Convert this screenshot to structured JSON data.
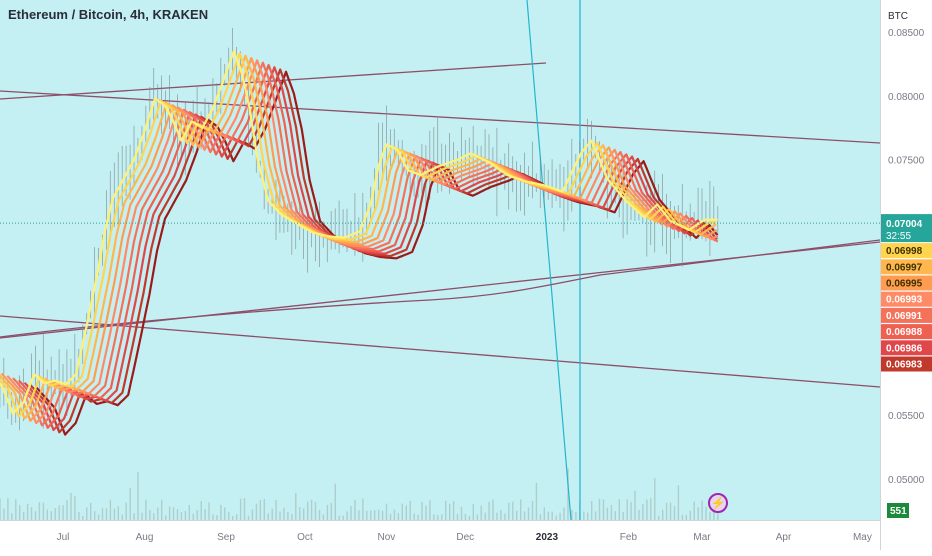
{
  "header": {
    "title": "Ethereum / Bitcoin, 4h, KRAKEN"
  },
  "price_scale": {
    "currency": "BTC",
    "current_price": "0.07004",
    "countdown": "32:55",
    "volume_badge": "551"
  },
  "colors": {
    "background": "#c5f0f3",
    "ribbon": [
      "#fff176",
      "#ffd54f",
      "#ffb74d",
      "#ff9c4f",
      "#ff8a65",
      "#f4715a",
      "#f06050",
      "#e0474a",
      "#c0392b",
      "#9b1b1b"
    ],
    "trendline": "#8d4e6a",
    "vertical_line": "#22b5cf",
    "candle": "#7a8a8a",
    "volume": "#9fb8b0",
    "price_label": "#26a69a"
  },
  "icons": {
    "alert": "bolt-icon"
  },
  "chart_data": {
    "type": "line",
    "title": "Ethereum / Bitcoin, 4h, KRAKEN",
    "x_ticks": [
      "Jul",
      "Aug",
      "Sep",
      "Oct",
      "Nov",
      "Dec",
      "2023",
      "Feb",
      "Mar",
      "Apr",
      "May"
    ],
    "y_ticks": [
      0.05,
      0.055,
      0.07,
      0.075,
      0.08,
      0.085
    ],
    "y_tick_labels": [
      "0.05000",
      "0.05500",
      "0.07000",
      "0.07500",
      "0.08000",
      "0.08500"
    ],
    "ylabel": "BTC",
    "ylim": [
      0.0485,
      0.0865
    ],
    "grid": false,
    "series": [
      {
        "x": [
          "2022-06-01",
          "2022-06-08",
          "2022-06-12",
          "2022-06-16",
          "2022-06-20",
          "2022-06-24",
          "2022-06-28",
          "2022-07-02",
          "2022-07-06",
          "2022-07-10",
          "2022-07-14",
          "2022-07-17",
          "2022-07-20",
          "2022-07-24",
          "2022-07-28",
          "2022-08-01",
          "2022-08-05",
          "2022-08-09",
          "2022-08-12",
          "2022-08-15",
          "2022-08-19",
          "2022-08-23",
          "2022-08-27",
          "2022-08-31",
          "2022-09-04",
          "2022-09-07",
          "2022-09-10",
          "2022-09-13",
          "2022-09-17",
          "2022-09-22",
          "2022-09-28",
          "2022-10-04",
          "2022-10-10",
          "2022-10-16",
          "2022-10-22",
          "2022-10-26",
          "2022-10-29",
          "2022-11-01",
          "2022-11-05",
          "2022-11-09",
          "2022-11-14",
          "2022-11-21",
          "2022-11-28",
          "2022-12-03",
          "2022-12-10",
          "2022-12-17",
          "2022-12-24",
          "2022-12-31",
          "2023-01-07",
          "2023-01-14",
          "2023-01-18",
          "2023-01-24",
          "2023-01-31",
          "2023-02-07",
          "2023-02-12",
          "2023-02-17",
          "2023-02-24",
          "2023-03-02",
          "2023-03-07"
        ],
        "values": [
          0.0588,
          0.0572,
          0.0551,
          0.056,
          0.0582,
          0.0575,
          0.0577,
          0.0574,
          0.0582,
          0.062,
          0.066,
          0.0695,
          0.072,
          0.0735,
          0.075,
          0.0772,
          0.0798,
          0.0792,
          0.078,
          0.0765,
          0.078,
          0.0775,
          0.079,
          0.0812,
          0.0835,
          0.0818,
          0.079,
          0.075,
          0.0718,
          0.0707,
          0.07,
          0.0693,
          0.069,
          0.0689,
          0.0694,
          0.0715,
          0.0745,
          0.0762,
          0.0758,
          0.0742,
          0.0738,
          0.0745,
          0.075,
          0.0755,
          0.0748,
          0.0738,
          0.0733,
          0.073,
          0.0725,
          0.0755,
          0.0765,
          0.0735,
          0.0718,
          0.0705,
          0.0715,
          0.0702,
          0.0695,
          0.0703,
          0.0703
        ]
      }
    ],
    "ribbon_labels": [
      "0.06998",
      "0.06997",
      "0.06995",
      "0.06993",
      "0.06991",
      "0.06988",
      "0.06986",
      "0.06983"
    ]
  }
}
